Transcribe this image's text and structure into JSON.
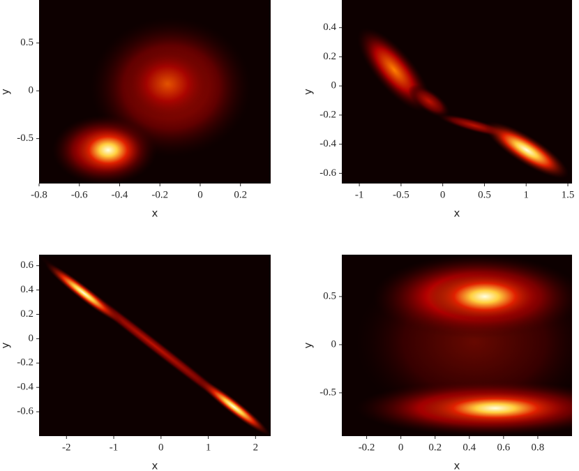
{
  "chart_data": [
    {
      "type": "heatmap",
      "xlabel": "x",
      "ylabel": "y",
      "xlim": [
        -0.8,
        0.35
      ],
      "ylim": [
        -0.97,
        0.95
      ],
      "xticks": [
        -0.8,
        -0.6,
        -0.4,
        -0.2,
        0,
        0.2
      ],
      "yticks": [
        -0.5,
        0,
        0.5
      ]
    },
    {
      "type": "heatmap",
      "xlabel": "x",
      "ylabel": "y",
      "xlim": [
        -1.21,
        1.55
      ],
      "ylim": [
        -0.67,
        0.59
      ],
      "xticks": [
        -1,
        -0.5,
        0,
        0.5,
        1,
        1.5
      ],
      "yticks": [
        -0.6,
        -0.4,
        -0.2,
        0,
        0.2,
        0.4
      ]
    },
    {
      "type": "heatmap",
      "xlabel": "x",
      "ylabel": "y",
      "xlim": [
        -2.58,
        2.32
      ],
      "ylim": [
        -0.8,
        0.69
      ],
      "xticks": [
        -2,
        -1,
        0,
        1,
        2
      ],
      "yticks": [
        -0.6,
        -0.4,
        -0.2,
        0,
        0.2,
        0.4,
        0.6
      ]
    },
    {
      "type": "heatmap",
      "xlabel": "x",
      "ylabel": "y",
      "xlim": [
        -0.345,
        1.0
      ],
      "ylim": [
        -0.95,
        0.935
      ],
      "xticks": [
        -0.2,
        0,
        0.2,
        0.4,
        0.6,
        0.8
      ],
      "yticks": [
        -0.5,
        0,
        0.5
      ]
    }
  ]
}
